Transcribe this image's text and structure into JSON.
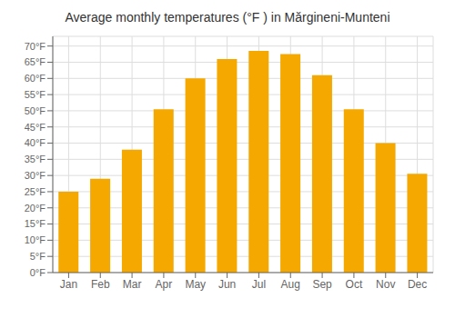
{
  "chart_data": {
    "type": "bar",
    "title": "Average monthly temperatures (°F ) in Mărgineni-Munteni",
    "categories": [
      "Jan",
      "Feb",
      "Mar",
      "Apr",
      "May",
      "Jun",
      "Jul",
      "Aug",
      "Sep",
      "Oct",
      "Nov",
      "Dec"
    ],
    "values": [
      25,
      29,
      38,
      50.5,
      60,
      66,
      68.5,
      67.5,
      61,
      50.5,
      40,
      30.5
    ],
    "color": "#F5A800",
    "ylim": [
      0,
      73
    ],
    "yticks": [
      {
        "value": 0,
        "label": "0°F"
      },
      {
        "value": 5,
        "label": "5°F"
      },
      {
        "value": 10,
        "label": "10°F"
      },
      {
        "value": 15,
        "label": "15°F"
      },
      {
        "value": 20,
        "label": "20°F"
      },
      {
        "value": 25,
        "label": "25°F"
      },
      {
        "value": 30,
        "label": "30°F"
      },
      {
        "value": 35,
        "label": "35°F"
      },
      {
        "value": 40,
        "label": "40°F"
      },
      {
        "value": 45,
        "label": "45°F"
      },
      {
        "value": 50,
        "label": "50°F"
      },
      {
        "value": 55,
        "label": "55°F"
      },
      {
        "value": 60,
        "label": "60°F"
      },
      {
        "value": 65,
        "label": "65°F"
      },
      {
        "value": 70,
        "label": "70°F"
      }
    ],
    "grid": true
  }
}
